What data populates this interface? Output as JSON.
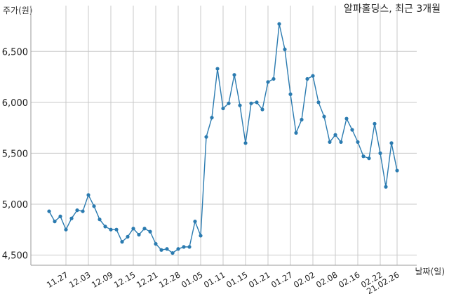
{
  "chart_data": {
    "type": "line",
    "title": "알파홀딩스, 최근 3개월",
    "ylabel": "주가(원)",
    "xlabel": "날짜(일)",
    "ylim": [
      4400,
      6950
    ],
    "y_ticks": [
      4500,
      5000,
      5500,
      6000,
      6500
    ],
    "y_tick_labels": [
      "4,500",
      "5,000",
      "5,500",
      "6,000",
      "6,500"
    ],
    "x_tick_labels": [
      "11.27",
      "12.03",
      "12.09",
      "12.15",
      "12.21",
      "12.28",
      "01.05",
      "01.11",
      "01.15",
      "01.21",
      "01.27",
      "02.02",
      "02.08",
      "02.16",
      "02.22",
      "21.02.26"
    ],
    "x_tick_index": [
      3,
      7,
      11,
      15,
      19,
      23,
      27,
      31,
      35,
      39,
      43,
      47,
      51,
      55,
      59,
      62
    ],
    "color": "#2b7bb0",
    "values": [
      4930,
      4830,
      4880,
      4750,
      4860,
      4940,
      4930,
      5090,
      4980,
      4850,
      4780,
      4750,
      4750,
      4630,
      4680,
      4760,
      4700,
      4760,
      4730,
      4610,
      4550,
      4560,
      4520,
      4560,
      4580,
      4580,
      4830,
      4690,
      5660,
      5850,
      6330,
      5940,
      5990,
      6270,
      5970,
      5600,
      5990,
      6000,
      5930,
      6200,
      6230,
      6770,
      6520,
      6080,
      5700,
      5830,
      6230,
      6260,
      6000,
      5860,
      5610,
      5680,
      5610,
      5840,
      5730,
      5610,
      5470,
      5450,
      5790,
      5500,
      5170,
      5600,
      5330
    ]
  }
}
